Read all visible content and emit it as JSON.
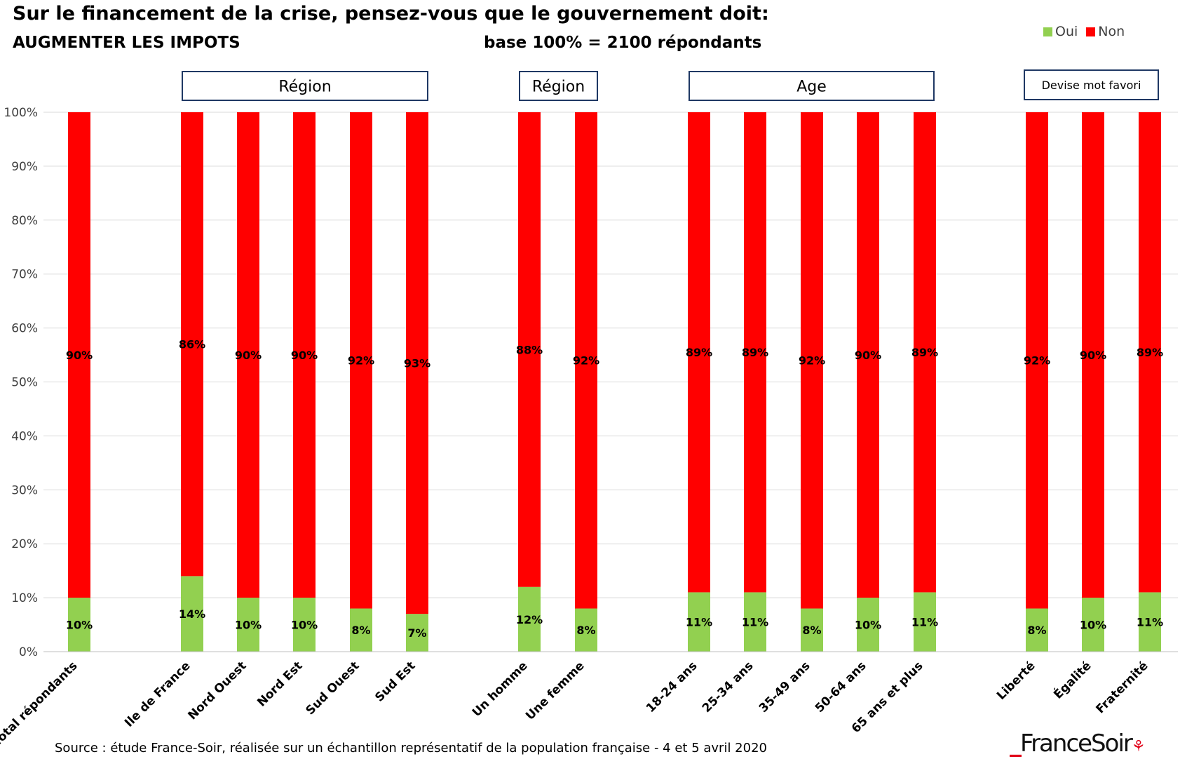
{
  "header": {
    "title": "Sur le financement de la crise, pensez-vous que le gouvernement doit:",
    "subtitle": "AUGMENTER LES IMPOTS",
    "base": "base 100% = 2100 répondants"
  },
  "footer": {
    "source": "Source : étude France-Soir, réalisée sur un échantillon représentatif de la population française - 4 et 5 avril 2020",
    "logo_text": "FranceSoir"
  },
  "colors": {
    "oui": "#92d050",
    "non": "#ff0000",
    "grid": "#d9d9d9",
    "group_box": "#1f3864"
  },
  "chart_data": {
    "type": "bar",
    "stacked": true,
    "ylim": [
      0,
      100
    ],
    "yticks": [
      "0%",
      "10%",
      "20%",
      "30%",
      "40%",
      "50%",
      "60%",
      "70%",
      "80%",
      "90%",
      "100%"
    ],
    "legend": {
      "placement": "top-right",
      "entries": [
        "Oui",
        "Non"
      ]
    },
    "grid": true,
    "categories": [
      "Total répondants",
      "Ile de France",
      "Nord Ouest",
      "Nord Est",
      "Sud Ouest",
      "Sud Est",
      "Un homme",
      "Une femme",
      "18-24 ans",
      "25-34 ans",
      "35-49 ans",
      "50-64 ans",
      "65 ans et plus",
      "Liberté",
      "Égalité",
      "Fraternité"
    ],
    "series": [
      {
        "name": "Oui",
        "values": [
          10,
          14,
          10,
          10,
          8,
          7,
          12,
          8,
          11,
          11,
          8,
          10,
          11,
          8,
          10,
          11
        ],
        "labels": [
          "10%",
          "14%",
          "10%",
          "10%",
          "8%",
          "7%",
          "12%",
          "8%",
          "11%",
          "11%",
          "8%",
          "10%",
          "11%",
          "8%",
          "10%",
          "11%"
        ]
      },
      {
        "name": "Non",
        "values": [
          90,
          86,
          90,
          90,
          92,
          93,
          88,
          92,
          89,
          89,
          92,
          90,
          89,
          92,
          90,
          89
        ],
        "labels": [
          "90%",
          "86%",
          "90%",
          "90%",
          "92%",
          "93%",
          "88%",
          "92%",
          "89%",
          "89%",
          "92%",
          "90%",
          "89%",
          "92%",
          "90%",
          "89%"
        ]
      }
    ],
    "groups": [
      {
        "label": "Région",
        "categories": [
          "Ile de France",
          "Nord Ouest",
          "Nord Est",
          "Sud Ouest",
          "Sud Est"
        ]
      },
      {
        "label": "Région",
        "categories": [
          "Un homme",
          "Une femme"
        ]
      },
      {
        "label": "Age",
        "categories": [
          "18-24 ans",
          "25-34 ans",
          "35-49 ans",
          "50-64 ans",
          "65 ans et plus"
        ]
      },
      {
        "label": "Devise mot favori",
        "categories": [
          "Liberté",
          "Égalité",
          "Fraternité"
        ]
      }
    ]
  }
}
